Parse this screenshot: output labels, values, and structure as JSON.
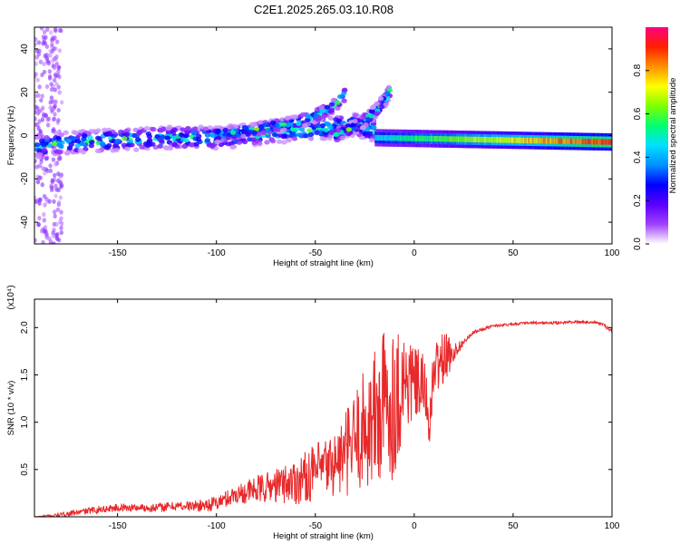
{
  "title": "C2E1.2025.265.03.10.R08",
  "colors": {
    "snr_line": "#e8282a",
    "colormap": [
      "#ffffff",
      "#a040ff",
      "#5a00ff",
      "#0000ff",
      "#0090ff",
      "#00e0ff",
      "#00ff70",
      "#80ff00",
      "#ffff00",
      "#ff9000",
      "#ff2000",
      "#ff0080"
    ]
  },
  "chart_data": [
    {
      "type": "heatmap",
      "xlabel": "Height of straight line (km)",
      "ylabel": "Frequency (Hz)",
      "xlim": [
        -192,
        100
      ],
      "ylim": [
        -50,
        50
      ],
      "xticks": [
        -150,
        -100,
        -50,
        0,
        50,
        100
      ],
      "xtick_labels": [
        "-150",
        "-100",
        "-50",
        "0",
        "50",
        "100"
      ],
      "yticks": [
        -40,
        -20,
        0,
        20,
        40
      ],
      "ytick_labels": [
        "-40",
        "-20",
        "0",
        "20",
        "40"
      ],
      "colorbar": {
        "label": "Normalized spectral amplitude",
        "range": [
          0,
          1
        ],
        "ticks": [
          0.0,
          0.2,
          0.4,
          0.6,
          0.8
        ],
        "tick_labels": [
          "0.0",
          "0.2",
          "0.4",
          "0.6",
          "0.8"
        ]
      },
      "ridges": [
        {
          "x": [
            -192,
            -170,
            -150,
            -125,
            -100,
            -75,
            -50,
            -30,
            -15,
            -5,
            0,
            20,
            50,
            80,
            100
          ],
          "y": [
            -5,
            -3,
            -2,
            -1,
            -1,
            1,
            3,
            5,
            1,
            -1,
            -1,
            -1,
            -1,
            -2,
            -2
          ]
        },
        {
          "x": [
            -100,
            -80,
            -60,
            -50,
            -40,
            -35
          ],
          "y": [
            0,
            3,
            6,
            9,
            14,
            19
          ]
        },
        {
          "x": [
            -40,
            -30,
            -25,
            -20,
            -15,
            -12
          ],
          "y": [
            0,
            4,
            7,
            11,
            16,
            21
          ]
        }
      ],
      "carrier_band": {
        "x": [
          -20,
          100
        ],
        "y": [
          -1,
          -3
        ],
        "amplitude": [
          0.5,
          1.0
        ]
      }
    },
    {
      "type": "line",
      "xlabel": "Height of straight line (km)",
      "ylabel": "SNR (10 * v/v)",
      "y_multiplier": "(x10⁴)",
      "xlim": [
        -192,
        100
      ],
      "ylim": [
        0,
        2.3
      ],
      "xticks": [
        -150,
        -100,
        -50,
        0,
        50,
        100
      ],
      "xtick_labels": [
        "-150",
        "-100",
        "-50",
        "0",
        "50",
        "100"
      ],
      "yticks": [
        0.5,
        1.0,
        1.5,
        2.0
      ],
      "ytick_labels": [
        "0.5",
        "1.0",
        "1.5",
        "2.0"
      ],
      "series": [
        {
          "x": [
            -192,
            -180,
            -170,
            -160,
            -150,
            -140,
            -130,
            -120,
            -110,
            -100,
            -90,
            -80,
            -70,
            -60,
            -50,
            -40,
            -35,
            -30,
            -25,
            -20,
            -15,
            -10,
            -5,
            0,
            5,
            8,
            10,
            15,
            20,
            25,
            30,
            40,
            50,
            60,
            70,
            80,
            90,
            95,
            100
          ],
          "y": [
            0.0,
            0.02,
            0.05,
            0.08,
            0.1,
            0.1,
            0.1,
            0.12,
            0.12,
            0.15,
            0.25,
            0.3,
            0.35,
            0.4,
            0.5,
            0.6,
            0.7,
            0.85,
            1.0,
            1.1,
            1.25,
            1.3,
            1.5,
            1.45,
            1.4,
            1.0,
            1.6,
            1.7,
            1.75,
            1.85,
            1.95,
            2.02,
            2.04,
            2.05,
            2.05,
            2.06,
            2.06,
            2.04,
            1.96
          ],
          "noise": [
            0.0,
            0.02,
            0.03,
            0.04,
            0.04,
            0.04,
            0.05,
            0.05,
            0.06,
            0.08,
            0.1,
            0.15,
            0.18,
            0.25,
            0.3,
            0.35,
            0.45,
            0.55,
            0.65,
            0.8,
            0.9,
            0.8,
            0.6,
            0.4,
            0.35,
            0.25,
            0.3,
            0.3,
            0.1,
            0.03,
            0.02,
            0.015,
            0.015,
            0.015,
            0.015,
            0.015,
            0.015,
            0.015,
            0.02
          ]
        }
      ]
    }
  ]
}
